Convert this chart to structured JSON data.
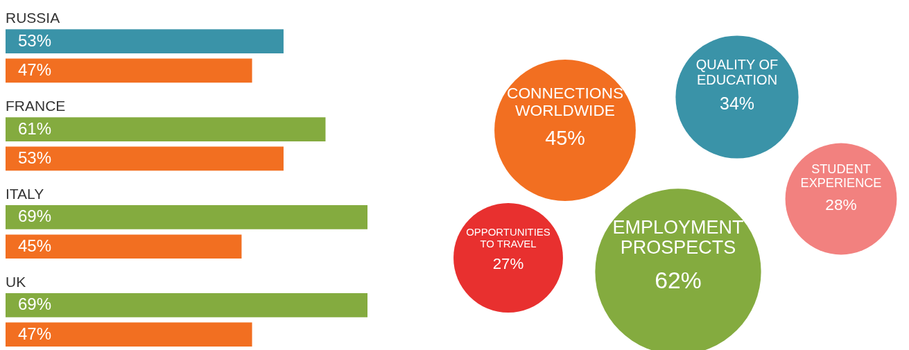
{
  "chart_data": [
    {
      "type": "bar",
      "orientation": "horizontal",
      "categories": [
        "RUSSIA",
        "FRANCE",
        "ITALY",
        "UK"
      ],
      "series": [
        {
          "colors": [
            "#3a93a8",
            "#84ab3f",
            "#84ab3f",
            "#84ab3f"
          ],
          "values": [
            53,
            61,
            69,
            69
          ],
          "value_labels": [
            "53%",
            "61%",
            "69%",
            "69%"
          ]
        },
        {
          "color": "#f26f21",
          "values": [
            47,
            53,
            45,
            47
          ],
          "value_labels": [
            "47%",
            "53%",
            "45%",
            "47%"
          ]
        }
      ]
    },
    {
      "type": "other",
      "categories": [
        "CONNECTIONS WORLDWIDE",
        "QUALITY OF EDUCATION",
        "STUDENT EXPERIENCE",
        "OPPORTUNITIES TO TRAVEL",
        "EMPLOYMENT PROSPECTS"
      ],
      "values": [
        45,
        34,
        28,
        27,
        62
      ],
      "value_labels": [
        "45%",
        "34%",
        "28%",
        "27%",
        "62%"
      ],
      "colors": [
        "#f26f21",
        "#3a93a8",
        "#f2817f",
        "#e8302f",
        "#84ab3f"
      ]
    }
  ]
}
